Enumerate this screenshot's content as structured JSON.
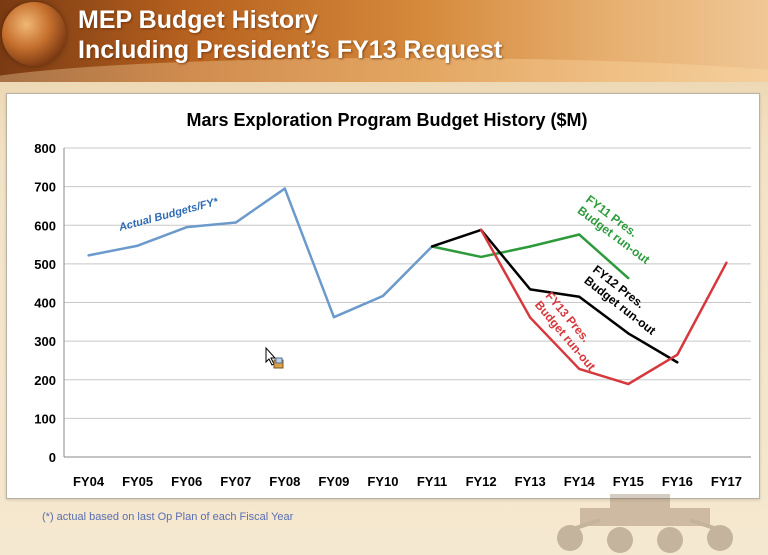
{
  "header": {
    "title_line1": "MEP Budget History",
    "title_line2": "Including President’s FY13 Request"
  },
  "footnote": "(*) actual based on last Op Plan of each Fiscal Year",
  "chart_data": {
    "type": "line",
    "title": "Mars Exploration Program Budget History ($M)",
    "xlabel": "",
    "ylabel": "",
    "categories": [
      "FY04",
      "FY05",
      "FY06",
      "FY07",
      "FY08",
      "FY09",
      "FY10",
      "FY11",
      "FY12",
      "FY13",
      "FY14",
      "FY15",
      "FY16",
      "FY17"
    ],
    "ylim": [
      0,
      800
    ],
    "yticks": [
      0,
      100,
      200,
      300,
      400,
      500,
      600,
      700,
      800
    ],
    "grid": true,
    "legend": "none",
    "series": [
      {
        "name": "Actual Budgets/FY*",
        "color": "#6b9acb",
        "values": [
          522,
          547,
          595,
          607,
          695,
          362,
          417,
          545,
          null,
          null,
          null,
          null,
          null,
          null
        ]
      },
      {
        "name": "FY11 Pres. Budget run-out",
        "color": "#2e9a3c",
        "values": [
          null,
          null,
          null,
          null,
          null,
          null,
          null,
          545,
          518,
          545,
          576,
          463,
          null,
          null
        ]
      },
      {
        "name": "FY12 Pres. Budget run-out",
        "color": "#000000",
        "values": [
          null,
          null,
          null,
          null,
          null,
          null,
          null,
          545,
          588,
          434,
          415,
          320,
          245,
          null
        ]
      },
      {
        "name": "FY13 Pres. Budget run-out",
        "color": "#d6383d",
        "values": [
          null,
          null,
          null,
          null,
          null,
          null,
          null,
          null,
          588,
          361,
          228,
          189,
          265,
          503
        ]
      }
    ],
    "annotations": [
      {
        "text": "Actual Budgets/FY*",
        "color": "#2e6cb4"
      },
      {
        "text": "FY11 Pres.",
        "text2": "Budget run-out",
        "color": "#2e9a3c"
      },
      {
        "text": "FY12 Pres.",
        "text2": "Budget run-out",
        "color": "#000000"
      },
      {
        "text": "FY13 Pres.",
        "text2": "Budget run-out",
        "color": "#d6383d"
      }
    ]
  }
}
